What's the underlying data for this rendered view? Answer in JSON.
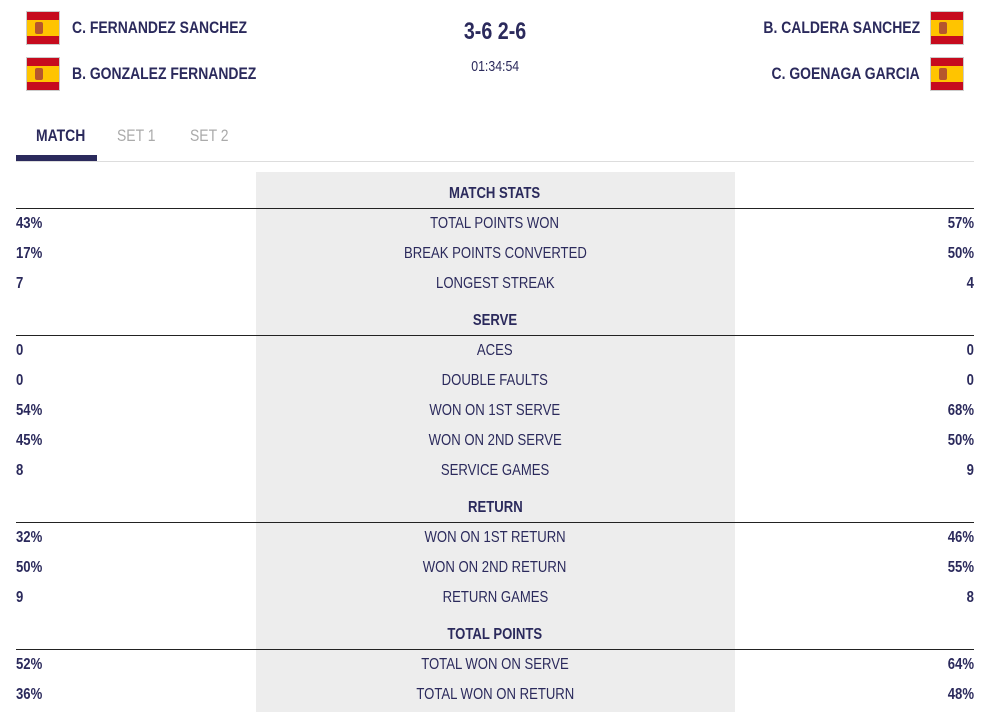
{
  "match": {
    "team1": [
      "C. FERNANDEZ SANCHEZ",
      "B. GONZALEZ FERNANDEZ"
    ],
    "team2": [
      "B. CALDERA SANCHEZ",
      "C. GOENAGA GARCIA"
    ],
    "score": "3-6 2-6",
    "duration": "01:34:54",
    "flag": "spain-flag-icon"
  },
  "tabs": [
    "MATCH",
    "SET 1",
    "SET 2"
  ],
  "sections": [
    {
      "title": "MATCH STATS",
      "rows": [
        [
          "43%",
          "TOTAL POINTS WON",
          "57%"
        ],
        [
          "17%",
          "BREAK POINTS CONVERTED",
          "50%"
        ],
        [
          "7",
          "LONGEST STREAK",
          "4"
        ]
      ]
    },
    {
      "title": "SERVE",
      "rows": [
        [
          "0",
          "ACES",
          "0"
        ],
        [
          "0",
          "DOUBLE FAULTS",
          "0"
        ],
        [
          "54%",
          "WON ON 1ST SERVE",
          "68%"
        ],
        [
          "45%",
          "WON ON 2ND SERVE",
          "50%"
        ],
        [
          "8",
          "SERVICE GAMES",
          "9"
        ]
      ]
    },
    {
      "title": "RETURN",
      "rows": [
        [
          "32%",
          "WON ON 1ST RETURN",
          "46%"
        ],
        [
          "50%",
          "WON ON 2ND RETURN",
          "55%"
        ],
        [
          "9",
          "RETURN GAMES",
          "8"
        ]
      ]
    },
    {
      "title": "TOTAL POINTS",
      "rows": [
        [
          "52%",
          "TOTAL WON ON SERVE",
          "64%"
        ],
        [
          "36%",
          "TOTAL WON ON RETURN",
          "48%"
        ]
      ]
    }
  ]
}
